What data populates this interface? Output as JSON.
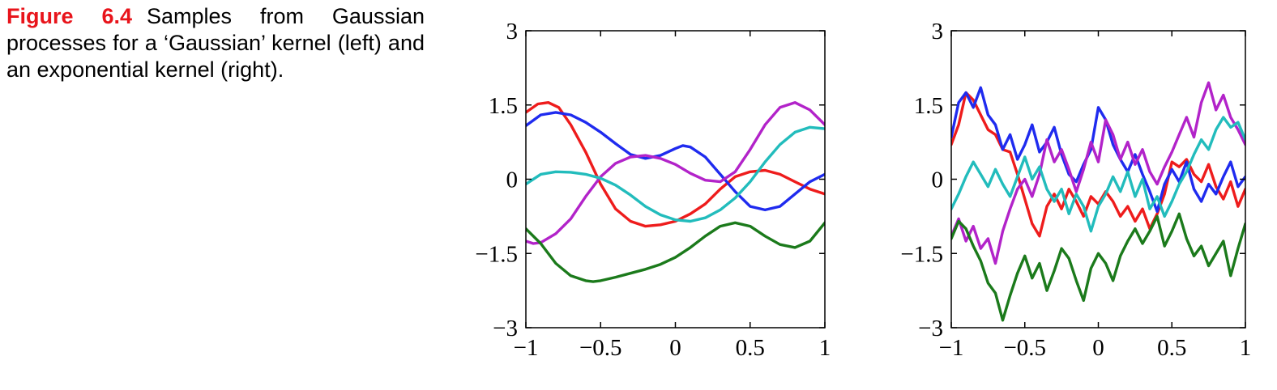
{
  "caption": {
    "label": "Figure 6.4",
    "text": "Samples from Gaussian processes for a ‘Gaussian’ kernel (left) and an exponential kernel (right)."
  },
  "chart_data": [
    {
      "type": "line",
      "panel": "left",
      "xlim": [
        -1,
        1
      ],
      "ylim": [
        -3,
        3
      ],
      "xticks": [
        "−1",
        "−0.5",
        "0",
        "0.5",
        "1"
      ],
      "xtick_values": [
        -1,
        -0.5,
        0,
        0.5,
        1
      ],
      "yticks": [
        "3",
        "1.5",
        "0",
        "−1.5",
        "−3"
      ],
      "ytick_values": [
        3,
        1.5,
        0,
        -1.5,
        -3
      ],
      "grid": false,
      "series": [
        {
          "color": "#ee1c1c",
          "x": [
            -1,
            -0.92,
            -0.85,
            -0.78,
            -0.7,
            -0.6,
            -0.5,
            -0.4,
            -0.3,
            -0.2,
            -0.1,
            0,
            0.1,
            0.2,
            0.3,
            0.4,
            0.5,
            0.6,
            0.7,
            0.8,
            0.9,
            1
          ],
          "y": [
            1.35,
            1.52,
            1.55,
            1.45,
            1.1,
            0.55,
            -0.1,
            -0.6,
            -0.85,
            -0.95,
            -0.92,
            -0.85,
            -0.7,
            -0.5,
            -0.2,
            0.05,
            0.15,
            0.18,
            0.1,
            -0.05,
            -0.2,
            -0.3
          ]
        },
        {
          "color": "#1f2bef",
          "x": [
            -1,
            -0.9,
            -0.8,
            -0.7,
            -0.6,
            -0.5,
            -0.4,
            -0.3,
            -0.2,
            -0.1,
            0,
            0.05,
            0.1,
            0.2,
            0.3,
            0.4,
            0.5,
            0.6,
            0.7,
            0.8,
            0.9,
            1
          ],
          "y": [
            1.08,
            1.3,
            1.35,
            1.3,
            1.15,
            0.95,
            0.72,
            0.5,
            0.42,
            0.48,
            0.62,
            0.68,
            0.65,
            0.45,
            0.1,
            -0.25,
            -0.55,
            -0.62,
            -0.55,
            -0.3,
            -0.05,
            0.1
          ]
        },
        {
          "color": "#b223c9",
          "x": [
            -1,
            -0.95,
            -0.9,
            -0.8,
            -0.7,
            -0.6,
            -0.5,
            -0.4,
            -0.3,
            -0.2,
            -0.1,
            0,
            0.1,
            0.2,
            0.3,
            0.4,
            0.5,
            0.6,
            0.7,
            0.8,
            0.9,
            1
          ],
          "y": [
            -1.25,
            -1.3,
            -1.28,
            -1.1,
            -0.8,
            -0.35,
            0.05,
            0.32,
            0.45,
            0.48,
            0.42,
            0.3,
            0.12,
            -0.02,
            -0.05,
            0.15,
            0.6,
            1.1,
            1.45,
            1.55,
            1.4,
            1.1
          ]
        },
        {
          "color": "#22bcbc",
          "x": [
            -1,
            -0.9,
            -0.8,
            -0.7,
            -0.6,
            -0.5,
            -0.4,
            -0.3,
            -0.2,
            -0.1,
            0,
            0.1,
            0.2,
            0.3,
            0.4,
            0.5,
            0.6,
            0.7,
            0.8,
            0.9,
            1
          ],
          "y": [
            -0.1,
            0.1,
            0.15,
            0.14,
            0.1,
            0.02,
            -0.12,
            -0.32,
            -0.55,
            -0.72,
            -0.82,
            -0.85,
            -0.78,
            -0.62,
            -0.38,
            -0.05,
            0.35,
            0.7,
            0.95,
            1.05,
            1.02
          ]
        },
        {
          "color": "#1b7a1b",
          "x": [
            -1,
            -0.9,
            -0.8,
            -0.7,
            -0.6,
            -0.55,
            -0.5,
            -0.4,
            -0.3,
            -0.2,
            -0.1,
            0,
            0.1,
            0.2,
            0.3,
            0.4,
            0.5,
            0.6,
            0.7,
            0.8,
            0.9,
            1
          ],
          "y": [
            -1.0,
            -1.3,
            -1.7,
            -1.95,
            -2.05,
            -2.07,
            -2.05,
            -1.98,
            -1.9,
            -1.82,
            -1.72,
            -1.58,
            -1.38,
            -1.15,
            -0.95,
            -0.88,
            -0.95,
            -1.15,
            -1.32,
            -1.38,
            -1.25,
            -0.88
          ]
        }
      ]
    },
    {
      "type": "line",
      "panel": "right",
      "xlim": [
        -1,
        1
      ],
      "ylim": [
        -3,
        3
      ],
      "xticks": [
        "−1",
        "−0.5",
        "0",
        "0.5",
        "1"
      ],
      "xtick_values": [
        -1,
        -0.5,
        0,
        0.5,
        1
      ],
      "yticks": [
        "3",
        "1.5",
        "0",
        "−1.5",
        "−3"
      ],
      "ytick_values": [
        3,
        1.5,
        0,
        -1.5,
        -3
      ],
      "grid": false,
      "series": [
        {
          "color": "#ee1c1c",
          "x": [
            -1,
            -0.95,
            -0.9,
            -0.85,
            -0.8,
            -0.75,
            -0.7,
            -0.65,
            -0.6,
            -0.55,
            -0.5,
            -0.45,
            -0.4,
            -0.35,
            -0.3,
            -0.25,
            -0.2,
            -0.15,
            -0.1,
            -0.05,
            0,
            0.05,
            0.1,
            0.15,
            0.2,
            0.25,
            0.3,
            0.35,
            0.4,
            0.45,
            0.5,
            0.55,
            0.6,
            0.65,
            0.7,
            0.75,
            0.8,
            0.85,
            0.9,
            0.95,
            1
          ],
          "y": [
            0.7,
            1.1,
            1.75,
            1.6,
            1.3,
            1.0,
            0.9,
            0.6,
            0.55,
            0.1,
            -0.4,
            -0.9,
            -1.15,
            -0.55,
            -0.3,
            -0.6,
            -0.2,
            -0.45,
            -0.75,
            -0.35,
            -0.5,
            -0.25,
            -0.45,
            -0.75,
            -0.55,
            -0.85,
            -0.6,
            -1.0,
            -0.7,
            -0.3,
            0.35,
            0.25,
            0.4,
            0.1,
            -0.05,
            0.3,
            -0.15,
            -0.4,
            -0.05,
            -0.55,
            -0.2
          ]
        },
        {
          "color": "#1f2bef",
          "x": [
            -1,
            -0.95,
            -0.9,
            -0.85,
            -0.8,
            -0.75,
            -0.7,
            -0.65,
            -0.6,
            -0.55,
            -0.5,
            -0.45,
            -0.4,
            -0.35,
            -0.3,
            -0.25,
            -0.2,
            -0.15,
            -0.1,
            -0.05,
            0,
            0.05,
            0.1,
            0.15,
            0.2,
            0.25,
            0.3,
            0.35,
            0.4,
            0.45,
            0.5,
            0.55,
            0.6,
            0.65,
            0.7,
            0.75,
            0.8,
            0.85,
            0.9,
            0.95,
            1
          ],
          "y": [
            0.85,
            1.55,
            1.75,
            1.45,
            1.85,
            1.3,
            1.1,
            0.6,
            0.9,
            0.4,
            0.7,
            1.1,
            0.55,
            0.75,
            1.05,
            0.5,
            0.1,
            -0.05,
            0.3,
            0.6,
            1.45,
            1.2,
            0.7,
            0.4,
            0.15,
            0.5,
            0.1,
            -0.25,
            -0.65,
            -0.1,
            0.2,
            -0.05,
            0.35,
            -0.2,
            -0.45,
            -0.1,
            -0.3,
            0.05,
            0.35,
            -0.15,
            0.05
          ]
        },
        {
          "color": "#b223c9",
          "x": [
            -1,
            -0.95,
            -0.9,
            -0.85,
            -0.8,
            -0.75,
            -0.7,
            -0.65,
            -0.6,
            -0.55,
            -0.5,
            -0.45,
            -0.4,
            -0.35,
            -0.3,
            -0.25,
            -0.2,
            -0.15,
            -0.1,
            -0.05,
            0,
            0.05,
            0.1,
            0.15,
            0.2,
            0.25,
            0.3,
            0.35,
            0.4,
            0.45,
            0.5,
            0.55,
            0.6,
            0.65,
            0.7,
            0.75,
            0.8,
            0.85,
            0.9,
            0.95,
            1
          ],
          "y": [
            -1.15,
            -0.8,
            -1.25,
            -0.95,
            -1.4,
            -1.2,
            -1.7,
            -1.05,
            -0.6,
            -0.2,
            0.0,
            -0.35,
            0.1,
            0.8,
            0.35,
            0.6,
            0.2,
            -0.25,
            0.2,
            0.75,
            0.35,
            1.2,
            0.9,
            0.4,
            0.75,
            0.3,
            0.6,
            0.15,
            -0.1,
            0.25,
            0.55,
            0.9,
            1.25,
            0.85,
            1.55,
            1.95,
            1.4,
            1.7,
            1.25,
            1.0,
            0.7
          ]
        },
        {
          "color": "#22bcbc",
          "x": [
            -1,
            -0.95,
            -0.9,
            -0.85,
            -0.8,
            -0.75,
            -0.7,
            -0.65,
            -0.6,
            -0.55,
            -0.5,
            -0.45,
            -0.4,
            -0.35,
            -0.3,
            -0.25,
            -0.2,
            -0.15,
            -0.1,
            -0.05,
            0,
            0.05,
            0.1,
            0.15,
            0.2,
            0.25,
            0.3,
            0.35,
            0.4,
            0.45,
            0.5,
            0.55,
            0.6,
            0.65,
            0.7,
            0.75,
            0.8,
            0.85,
            0.9,
            0.95,
            1
          ],
          "y": [
            -0.6,
            -0.3,
            0.05,
            0.35,
            0.1,
            -0.15,
            0.2,
            -0.1,
            -0.35,
            0.05,
            0.45,
            0.0,
            0.25,
            -0.2,
            -0.45,
            -0.2,
            -0.7,
            -0.3,
            -0.55,
            -1.05,
            -0.55,
            -0.3,
            0.05,
            -0.25,
            0.15,
            -0.35,
            0.0,
            -0.6,
            -0.35,
            -0.75,
            -0.45,
            -0.1,
            0.15,
            0.5,
            0.8,
            0.6,
            1.0,
            1.25,
            1.05,
            1.15,
            0.8
          ]
        },
        {
          "color": "#1b7a1b",
          "x": [
            -1,
            -0.95,
            -0.9,
            -0.85,
            -0.8,
            -0.75,
            -0.7,
            -0.65,
            -0.6,
            -0.55,
            -0.5,
            -0.45,
            -0.4,
            -0.35,
            -0.3,
            -0.25,
            -0.2,
            -0.15,
            -0.1,
            -0.05,
            0,
            0.05,
            0.1,
            0.15,
            0.2,
            0.25,
            0.3,
            0.35,
            0.4,
            0.45,
            0.5,
            0.55,
            0.6,
            0.65,
            0.7,
            0.75,
            0.8,
            0.85,
            0.9,
            0.95,
            1
          ],
          "y": [
            -1.2,
            -0.85,
            -1.0,
            -1.35,
            -1.65,
            -2.1,
            -2.3,
            -2.85,
            -2.35,
            -1.9,
            -1.55,
            -2.0,
            -1.7,
            -2.25,
            -1.85,
            -1.4,
            -1.6,
            -2.05,
            -2.45,
            -1.8,
            -1.5,
            -1.7,
            -2.05,
            -1.55,
            -1.25,
            -1.0,
            -1.3,
            -1.05,
            -0.75,
            -1.35,
            -1.05,
            -0.7,
            -1.2,
            -1.55,
            -1.35,
            -1.75,
            -1.5,
            -1.25,
            -1.95,
            -1.4,
            -0.9
          ]
        }
      ]
    }
  ]
}
